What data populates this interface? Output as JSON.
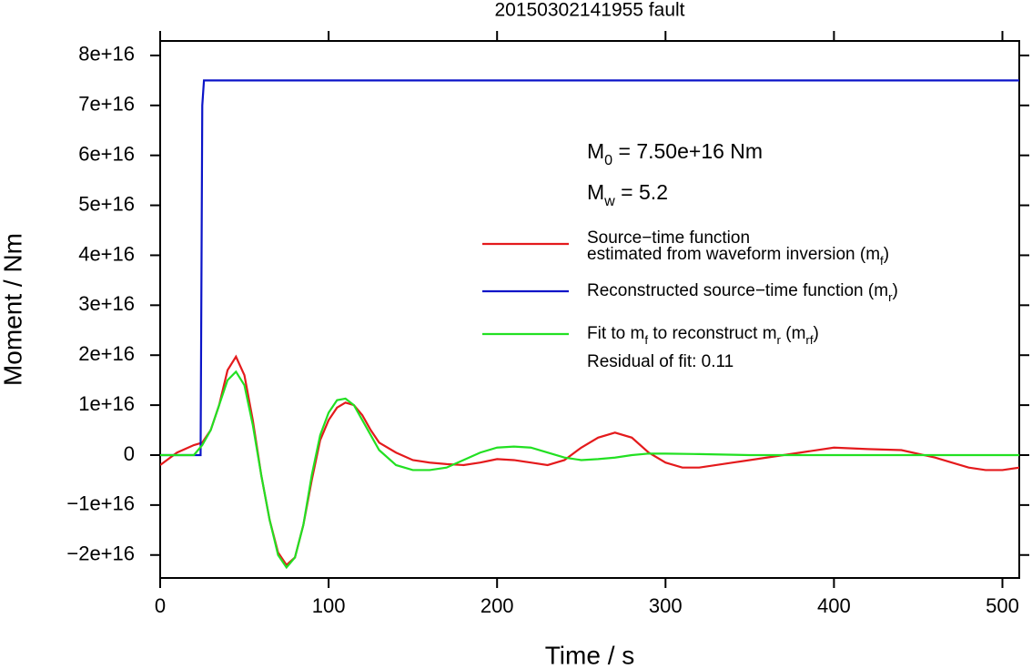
{
  "chart_data": {
    "type": "line",
    "title": "20150302141955 fault",
    "xlabel": "Time / s",
    "ylabel": "Moment / Nm",
    "xlim": [
      0,
      510
    ],
    "ylim": [
      -2.46e+16,
      8.29e+16
    ],
    "xticks": [
      0,
      100,
      200,
      300,
      400,
      500
    ],
    "yticks": [
      {
        "value": -2e+16,
        "label": "−2e+16"
      },
      {
        "value": -1e+16,
        "label": "−1e+16"
      },
      0,
      {
        "value": 1e+16,
        "label": "1e+16"
      },
      {
        "value": 2e+16,
        "label": "2e+16"
      },
      {
        "value": 3e+16,
        "label": "3e+16"
      },
      {
        "value": 4e+16,
        "label": "4e+16"
      },
      {
        "value": 5e+16,
        "label": "5e+16"
      },
      {
        "value": 6e+16,
        "label": "6e+16"
      },
      {
        "value": 7e+16,
        "label": "7e+16"
      },
      {
        "value": 8e+16,
        "label": "8e+16"
      }
    ],
    "series": [
      {
        "name": [
          [
            "Source−time function"
          ],
          [
            "estimated from waveform inversion (m",
            "f",
            ")"
          ]
        ],
        "color": "#e41a1c",
        "x": [
          0,
          10,
          20,
          25,
          30,
          35,
          40,
          45,
          50,
          55,
          60,
          65,
          70,
          75,
          80,
          85,
          90,
          95,
          100,
          105,
          110,
          115,
          120,
          125,
          130,
          140,
          150,
          160,
          170,
          180,
          190,
          200,
          210,
          220,
          230,
          240,
          250,
          260,
          270,
          280,
          290,
          300,
          310,
          320,
          340,
          360,
          380,
          400,
          420,
          440,
          460,
          480,
          490,
          500,
          510
        ],
        "values": [
          -2000000000000000.0,
          500000000000000.0,
          2000000000000000.0,
          2500000000000000.0,
          5000000000000000.0,
          1e+16,
          1.7e+16,
          1.97e+16,
          1.6e+16,
          7000000000000000.0,
          -4000000000000000.0,
          -1.3e+16,
          -1.95e+16,
          -2.2e+16,
          -2.05e+16,
          -1.4e+16,
          -5000000000000000.0,
          3000000000000000.0,
          7000000000000000.0,
          9500000000000000.0,
          1.05e+16,
          1e+16,
          8000000000000000.0,
          5000000000000000.0,
          2500000000000000.0,
          500000000000000.0,
          -1000000000000000.0,
          -1500000000000000.0,
          -1800000000000000.0,
          -2000000000000000.0,
          -1500000000000000.0,
          -800000000000000.0,
          -1000000000000000.0,
          -1500000000000000.0,
          -2000000000000000.0,
          -1000000000000000.0,
          1500000000000000.0,
          3500000000000000.0,
          4500000000000000.0,
          3500000000000000.0,
          500000000000000.0,
          -1500000000000000.0,
          -2500000000000000.0,
          -2500000000000000.0,
          -1500000000000000.0,
          -500000000000000.0,
          500000000000000.0,
          1500000000000000.0,
          1200000000000000.0,
          1000000000000000.0,
          -500000000000000.0,
          -2500000000000000.0,
          -3000000000000000.0,
          -3000000000000000.0,
          -2500000000000000.0
        ]
      },
      {
        "name": [
          [
            "Reconstructed source−time function (m",
            "r",
            ")"
          ]
        ],
        "color": "#0b14c8",
        "x": [
          0,
          24,
          25,
          26,
          510
        ],
        "values": [
          0,
          0,
          7e+16,
          7.5e+16,
          7.5e+16
        ]
      },
      {
        "name": [
          [
            "Fit to m",
            "f",
            " to reconstruct m",
            "r",
            " (m",
            "rf",
            ")"
          ]
        ],
        "color": "#22e022",
        "x": [
          0,
          20,
          25,
          30,
          35,
          40,
          45,
          50,
          55,
          60,
          65,
          70,
          75,
          80,
          85,
          90,
          95,
          100,
          105,
          110,
          115,
          120,
          130,
          140,
          150,
          160,
          170,
          180,
          190,
          200,
          210,
          220,
          230,
          240,
          250,
          260,
          270,
          280,
          290,
          300,
          320,
          350,
          400,
          510
        ],
        "values": [
          0,
          0,
          2000000000000000.0,
          5000000000000000.0,
          1e+16,
          1.5e+16,
          1.67e+16,
          1.4e+16,
          6000000000000000.0,
          -4000000000000000.0,
          -1.3e+16,
          -2e+16,
          -2.25e+16,
          -2.05e+16,
          -1.4e+16,
          -4000000000000000.0,
          4000000000000000.0,
          8500000000000000.0,
          1.1e+16,
          1.13e+16,
          1e+16,
          7000000000000000.0,
          1000000000000000.0,
          -2000000000000000.0,
          -3000000000000000.0,
          -3000000000000000.0,
          -2500000000000000.0,
          -1000000000000000.0,
          500000000000000.0,
          1500000000000000.0,
          1700000000000000.0,
          1500000000000000.0,
          500000000000000.0,
          -500000000000000.0,
          -1000000000000000.0,
          -800000000000000.0,
          -500000000000000.0,
          0,
          300000000000000.0,
          300000000000000.0,
          200000000000000.0,
          0,
          0,
          0
        ]
      }
    ],
    "annotations": [
      [
        "M",
        "0",
        " = 7.50e+16 Nm"
      ],
      [
        "M",
        "w",
        " = 5.2"
      ],
      [
        "Residual of fit: 0.11"
      ]
    ]
  }
}
